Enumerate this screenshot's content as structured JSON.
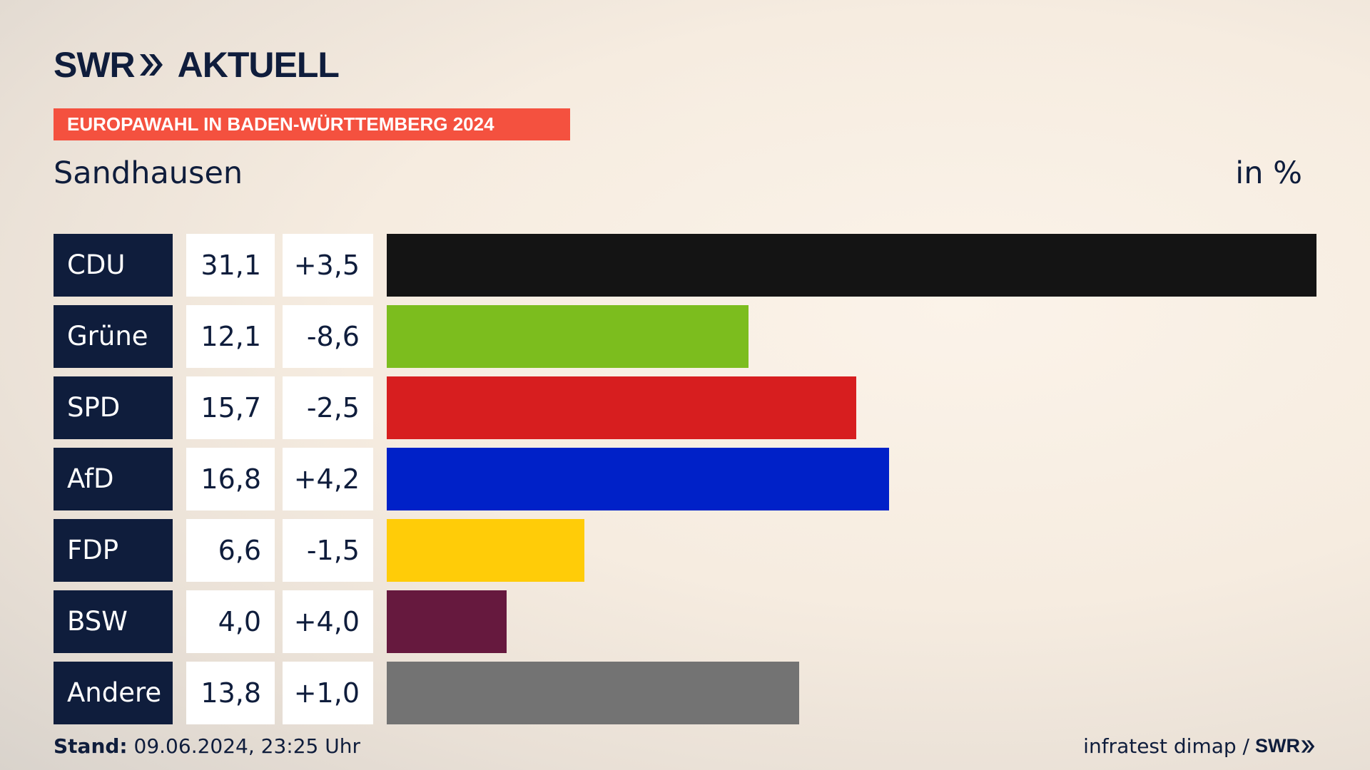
{
  "header": {
    "logo_text": "SWR",
    "logo_suffix": "AKTUELL",
    "banner": "EUROPAWAHL IN BADEN-WÜRTTEMBERG 2024",
    "region": "Sandhausen",
    "unit": "in %"
  },
  "footer": {
    "stand_label": "Stand:",
    "stand_value": "09.06.2024, 23:25 Uhr",
    "source": "infratest dimap /",
    "source_logo": "SWR"
  },
  "chart_data": {
    "type": "bar",
    "orientation": "horizontal",
    "categories": [
      "CDU",
      "Grüne",
      "SPD",
      "AfD",
      "FDP",
      "BSW",
      "Andere"
    ],
    "values": [
      31.1,
      12.1,
      15.7,
      16.8,
      6.6,
      4.0,
      13.8
    ],
    "value_labels": [
      "31,1",
      "12,1",
      "15,7",
      "16,8",
      "6,6",
      "4,0",
      "13,8"
    ],
    "change_labels": [
      "+3,5",
      "-8,6",
      "-2,5",
      "+4,2",
      "-1,5",
      "+4,0",
      "+1,0"
    ],
    "changes": [
      3.5,
      -8.6,
      -2.5,
      4.2,
      -1.5,
      4.0,
      1.0
    ],
    "colors": [
      "#141414",
      "#7cbd1e",
      "#d71e1f",
      "#0021c8",
      "#ffcc08",
      "#66193e",
      "#737373"
    ],
    "unit": "in %"
  },
  "colors": {
    "navy": "#0f1d3c",
    "accent": "#f4513f"
  }
}
